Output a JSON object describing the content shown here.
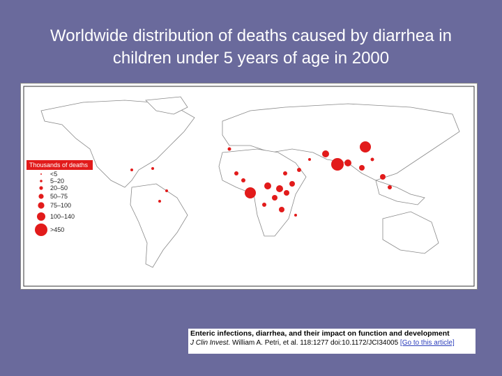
{
  "header": {
    "title": "Worldwide distribution of deaths caused by diarrhea in children under 5 years of age in 2000"
  },
  "map": {
    "legend": {
      "title": "Thousands of deaths",
      "items": [
        "<5",
        "5–20",
        "20–50",
        "50–75",
        "75–100",
        "100–140",
        ">450"
      ]
    }
  },
  "citation": {
    "title": "Enteric infections, diarrhea, and their impact on function and development",
    "journal": "J Clin Invest.",
    "details": "William A. Petri, et al. 118:1277 doi:10.1172/JCI34005",
    "link": "[Go to this article]"
  }
}
